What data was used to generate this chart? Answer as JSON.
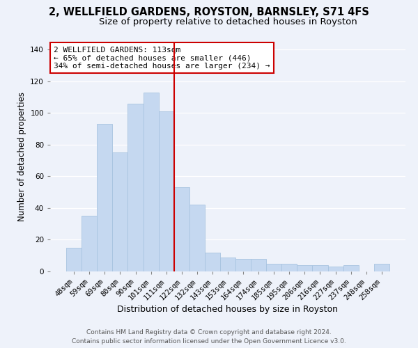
{
  "title": "2, WELLFIELD GARDENS, ROYSTON, BARNSLEY, S71 4FS",
  "subtitle": "Size of property relative to detached houses in Royston",
  "xlabel": "Distribution of detached houses by size in Royston",
  "ylabel": "Number of detached properties",
  "bar_labels": [
    "48sqm",
    "59sqm",
    "69sqm",
    "80sqm",
    "90sqm",
    "101sqm",
    "111sqm",
    "122sqm",
    "132sqm",
    "143sqm",
    "153sqm",
    "164sqm",
    "174sqm",
    "185sqm",
    "195sqm",
    "206sqm",
    "216sqm",
    "227sqm",
    "237sqm",
    "248sqm",
    "258sqm"
  ],
  "bar_values": [
    15,
    35,
    93,
    75,
    106,
    113,
    101,
    53,
    42,
    12,
    9,
    8,
    8,
    5,
    5,
    4,
    4,
    3,
    4,
    0,
    5
  ],
  "bar_color": "#c5d8f0",
  "bar_edge_color": "#a8c4e0",
  "vline_x": 6.5,
  "vline_color": "#cc0000",
  "annotation_text": "2 WELLFIELD GARDENS: 113sqm\n← 65% of detached houses are smaller (446)\n34% of semi-detached houses are larger (234) →",
  "annotation_box_color": "#ffffff",
  "annotation_box_edge": "#cc0000",
  "ylim": [
    0,
    145
  ],
  "yticks": [
    0,
    20,
    40,
    60,
    80,
    100,
    120,
    140
  ],
  "footer1": "Contains HM Land Registry data © Crown copyright and database right 2024.",
  "footer2": "Contains public sector information licensed under the Open Government Licence v3.0.",
  "background_color": "#eef2fa",
  "title_fontsize": 10.5,
  "subtitle_fontsize": 9.5,
  "xlabel_fontsize": 9,
  "ylabel_fontsize": 8.5,
  "tick_fontsize": 7.5,
  "annotation_fontsize": 8,
  "footer_fontsize": 6.5
}
